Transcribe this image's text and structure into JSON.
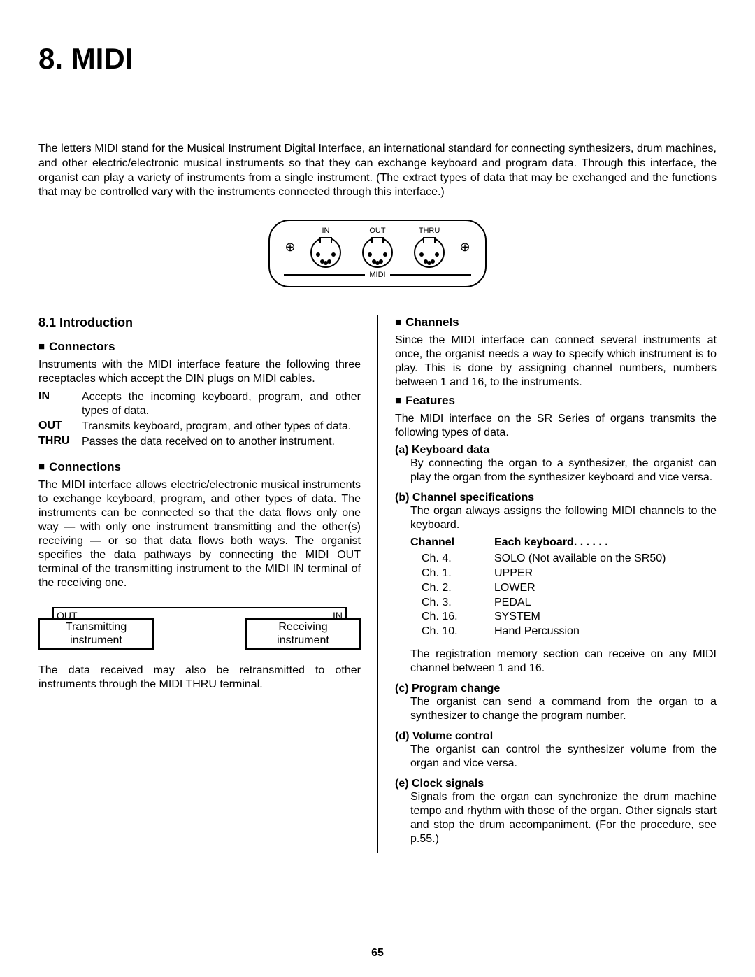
{
  "chapterTitle": "8.   MIDI",
  "introPara": "The letters MIDI stand for the Musical Instrument Digital Interface, an international standard for connecting synthesizers, drum machines, and other electric/electronic musical instruments so that they can exchange keyboard and program data. Through this interface, the organist can play a variety of instruments from a single instrument. (The extract types of data that may be exchanged and the functions that may be controlled vary with the instruments connected through this interface.)",
  "midiPanel": {
    "ports": [
      "IN",
      "OUT",
      "THRU"
    ],
    "label": "MIDI"
  },
  "left": {
    "sectionHead": "8.1 Introduction",
    "connectors": {
      "head": "Connectors",
      "intro": "Instruments with the MIDI interface feature the following three receptacles which accept the DIN plugs on MIDI cables.",
      "items": [
        {
          "k": "IN",
          "v": "Accepts the incoming keyboard, program, and other types of data."
        },
        {
          "k": "OUT",
          "v": "Transmits keyboard, program, and other types of data."
        },
        {
          "k": "THRU",
          "v": "Passes the data received on to another instrument."
        }
      ]
    },
    "connections": {
      "head": "Connections",
      "para": "The MIDI interface allows electric/electronic musical instruments to exchange keyboard, program, and other types of data. The instruments can be connected so that the data flows only one way — with only one instrument transmitting and the other(s) receiving — or so that data flows both ways. The organist specifies the data pathways by connecting the MIDI OUT terminal of the transmitting instrument to the MIDI IN terminal of the receiving one.",
      "boxOut": "OUT",
      "boxIn": "IN",
      "boxTx": "Transmitting instrument",
      "boxRx": "Receiving instrument",
      "after": "The data received may also be retransmitted to other instruments through the MIDI THRU terminal."
    }
  },
  "right": {
    "channels": {
      "head": "Channels",
      "para": "Since the MIDI interface can connect several instruments at once, the organist needs a way to specify which instrument is to play. This is done by assigning channel numbers, numbers between 1 and 16, to the instruments."
    },
    "features": {
      "head": "Features",
      "intro": "The MIDI interface on the SR Series of organs transmits the following types of data.",
      "items": [
        {
          "label": "(a) Keyboard data",
          "body": "By connecting the organ to a synthesizer, the organist can play the organ from the synthesizer keyboard and vice versa."
        },
        {
          "label": "(b) Channel specifications",
          "body": "The organ always assigns the following MIDI channels to the keyboard.",
          "tableHead": {
            "c1": "Channel",
            "c2": "Each keyboard. . . . . ."
          },
          "rows": [
            {
              "c1": "Ch. 4.",
              "c2": "SOLO (Not available on the SR50)"
            },
            {
              "c1": "Ch. 1.",
              "c2": "UPPER"
            },
            {
              "c1": "Ch. 2.",
              "c2": "LOWER"
            },
            {
              "c1": "Ch. 3.",
              "c2": "PEDAL"
            },
            {
              "c1": "Ch. 16.",
              "c2": "SYSTEM"
            },
            {
              "c1": "Ch. 10.",
              "c2": "Hand Percussion"
            }
          ],
          "after": "The registration memory section can receive on any MIDI channel between 1 and 16."
        },
        {
          "label": "(c) Program change",
          "body": "The organist can send a command from the organ to a synthesizer to change the program number."
        },
        {
          "label": "(d) Volume control",
          "body": "The organist can control the synthesizer volume from the organ and vice versa."
        },
        {
          "label": "(e) Clock signals",
          "body": "Signals from the organ can synchronize the drum machine tempo and rhythm with those of the organ. Other signals start and stop the drum accompaniment. (For the procedure, see p.55.)"
        }
      ]
    }
  },
  "pageNum": "65"
}
